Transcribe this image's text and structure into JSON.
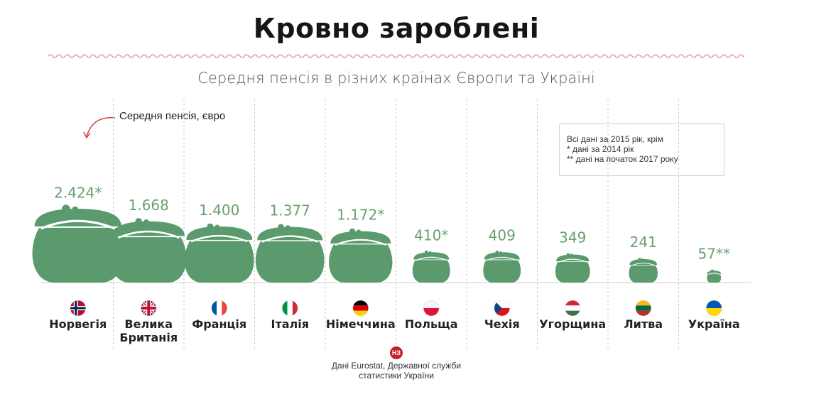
{
  "title": "Кровно зароблені",
  "subtitle": "Середня пенсія в різних країнах Європи та Україні",
  "chart_data": {
    "type": "bar",
    "title": "Кровно зароблені",
    "subtitle": "Середня пенсія в різних країнах Європи та Україні",
    "value_label": "Середня пенсія, євро",
    "unit": "євро",
    "categories": [
      "Норвегія",
      "Велика Британія",
      "Франція",
      "Італія",
      "Німеччина",
      "Польща",
      "Чехія",
      "Угорщина",
      "Литва",
      "Україна"
    ],
    "values": [
      2424,
      1668,
      1400,
      1377,
      1172,
      410,
      409,
      349,
      241,
      57
    ],
    "value_labels": [
      "2.424*",
      "1.668",
      "1.400",
      "1.377",
      "1.172*",
      "410*",
      "409",
      "349",
      "241",
      "57**"
    ],
    "category_lines": [
      [
        "Норвегія"
      ],
      [
        "Велика",
        "Британія"
      ],
      [
        "Франція"
      ],
      [
        "Італія"
      ],
      [
        "Німеччина"
      ],
      [
        "Польща"
      ],
      [
        "Чехія"
      ],
      [
        "Угорщина"
      ],
      [
        "Литва"
      ],
      [
        "Україна"
      ]
    ],
    "flags": [
      "norway-flag-icon",
      "uk-flag-icon",
      "france-flag-icon",
      "italy-flag-icon",
      "germany-flag-icon",
      "poland-flag-icon",
      "czech-flag-icon",
      "hungary-flag-icon",
      "lithuania-flag-icon",
      "ukraine-flag-icon"
    ],
    "mark": "purse-icon",
    "color": "#5a9a6c",
    "value_color": "#6aa06f"
  },
  "footnote": {
    "line1": "Всі дані за 2015 рік, крім",
    "line2": "*  дані за 2014 рік",
    "line3": "** дані на початок 2017 року"
  },
  "source": {
    "logo": "НЗ",
    "line1": "Дані Eurostat, Державної служби",
    "line2": "статистики України"
  }
}
